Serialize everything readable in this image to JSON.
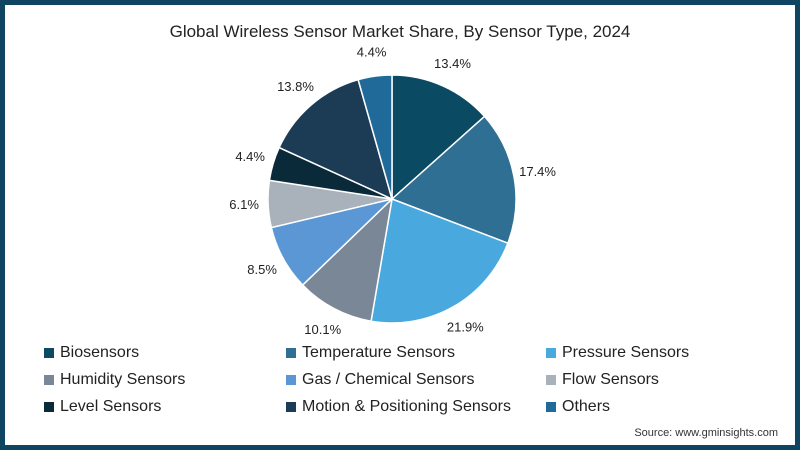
{
  "chart_data": {
    "type": "pie",
    "title": "Global Wireless Sensor Market Share, By Sensor Type, 2024",
    "categories": [
      "Biosensors",
      "Temperature Sensors",
      "Pressure Sensors",
      "Humidity Sensors",
      "Gas / Chemical Sensors",
      "Flow Sensors",
      "Level Sensors",
      "Motion & Positioning Sensors",
      "Others"
    ],
    "values": [
      13.4,
      17.4,
      21.9,
      10.1,
      8.5,
      6.1,
      4.4,
      13.8,
      4.4
    ],
    "labels": [
      "13.4%",
      "17.4%",
      "21.9%",
      "10.1%",
      "8.5%",
      "6.1%",
      "4.4%",
      "13.8%",
      "4.4%"
    ],
    "colors": [
      "#0b4a63",
      "#2e6f93",
      "#49a8de",
      "#7a8797",
      "#5a97d4",
      "#a9b2ba",
      "#0a2a3a",
      "#1c3c55",
      "#1f6a99"
    ],
    "legend_position": "bottom",
    "start_angle_deg": 0,
    "direction": "clockwise"
  },
  "source": "Source: www.gminsights.com"
}
